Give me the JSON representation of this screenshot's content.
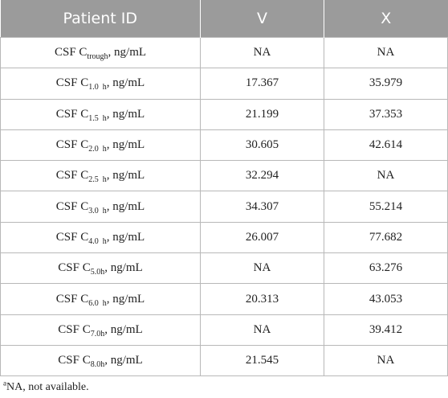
{
  "table": {
    "headers": [
      "Patient ID",
      "V",
      "X"
    ],
    "rows": [
      {
        "label_prefix": "CSF C",
        "label_sub": "trough",
        "label_suffix": ", ng/mL",
        "v": "NA",
        "x": "NA"
      },
      {
        "label_prefix": "CSF C",
        "label_sub": "1.0  h",
        "label_suffix": ", ng/mL",
        "v": "17.367",
        "x": "35.979"
      },
      {
        "label_prefix": "CSF C",
        "label_sub": "1.5  h",
        "label_suffix": ", ng/mL",
        "v": "21.199",
        "x": "37.353"
      },
      {
        "label_prefix": "CSF C",
        "label_sub": "2.0  h",
        "label_suffix": ", ng/mL",
        "v": "30.605",
        "x": "42.614"
      },
      {
        "label_prefix": "CSF C",
        "label_sub": "2.5  h",
        "label_suffix": ", ng/mL",
        "v": "32.294",
        "x": "NA"
      },
      {
        "label_prefix": "CSF C",
        "label_sub": "3.0  h",
        "label_suffix": ", ng/mL",
        "v": "34.307",
        "x": "55.214"
      },
      {
        "label_prefix": "CSF C",
        "label_sub": "4.0  h",
        "label_suffix": ", ng/mL",
        "v": "26.007",
        "x": "77.682"
      },
      {
        "label_prefix": "CSF C",
        "label_sub": "5.0h",
        "label_suffix": ", ng/mL",
        "v": "NA",
        "x": "63.276"
      },
      {
        "label_prefix": "CSF C",
        "label_sub": "6.0  h",
        "label_suffix": ", ng/mL",
        "v": "20.313",
        "x": "43.053"
      },
      {
        "label_prefix": "CSF C",
        "label_sub": "7.0h",
        "label_suffix": ", ng/mL",
        "v": "NA",
        "x": "39.412"
      },
      {
        "label_prefix": "CSF C",
        "label_sub": "8.0h",
        "label_suffix": ", ng/mL",
        "v": "21.545",
        "x": "NA"
      }
    ]
  },
  "footnote": {
    "marker": "a",
    "text": "NA, not available."
  },
  "colors": {
    "header_bg": "#9b9b9b",
    "header_text": "#ffffff",
    "grid": "#b8b8b8"
  }
}
